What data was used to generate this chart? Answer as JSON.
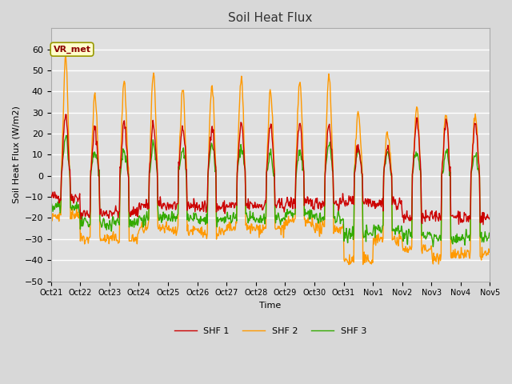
{
  "title": "Soil Heat Flux",
  "xlabel": "Time",
  "ylabel": "Soil Heat Flux (W/m2)",
  "ylim": [
    -50,
    70
  ],
  "yticks": [
    -50,
    -40,
    -30,
    -20,
    -10,
    0,
    10,
    20,
    30,
    40,
    50,
    60
  ],
  "xlim": [
    0,
    15
  ],
  "xtick_labels": [
    "Oct 21",
    "Oct 22",
    "Oct 23",
    "Oct 24",
    "Oct 25",
    "Oct 26",
    "Oct 27",
    "Oct 28",
    "Oct 29",
    "Oct 30",
    "Oct 31",
    "Nov 1",
    "Nov 2",
    "Nov 3",
    "Nov 4",
    "Nov 5"
  ],
  "annotation_text": "VR_met",
  "fig_bg_color": "#d8d8d8",
  "plot_bg_color": "#e0e0e0",
  "line_colors": [
    "#cc0000",
    "#ff9900",
    "#33aa00"
  ],
  "line_labels": [
    "SHF 1",
    "SHF 2",
    "SHF 3"
  ],
  "line_width": 1.0,
  "title_fontsize": 11,
  "axis_fontsize": 8,
  "tick_fontsize": 8,
  "legend_fontsize": 8,
  "grid_color": "#ffffff",
  "grid_lw": 1.0
}
